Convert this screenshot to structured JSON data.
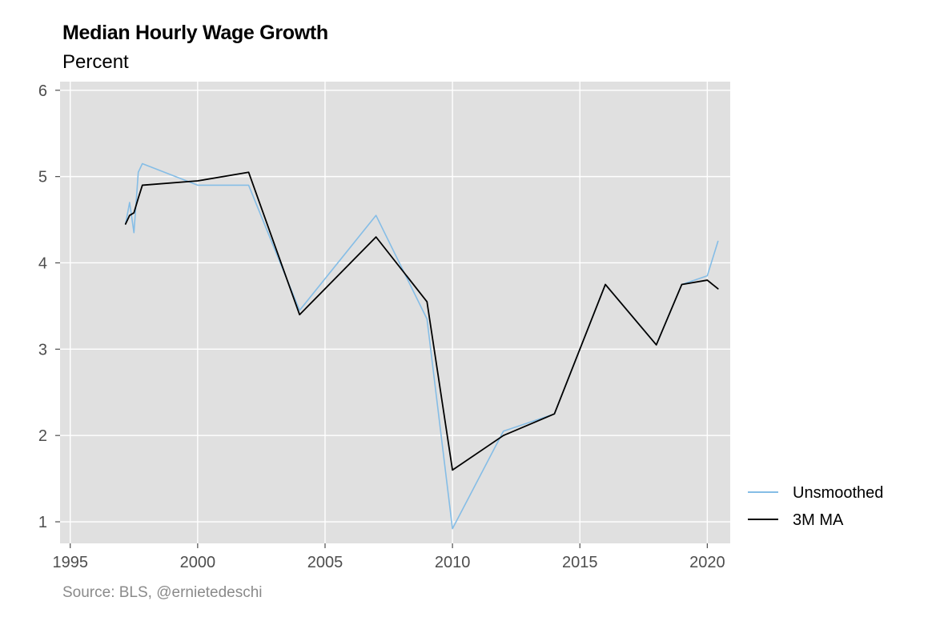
{
  "chart_data": {
    "type": "line",
    "title": "Median Hourly Wage Growth",
    "subtitle": "Percent",
    "caption": "Source: BLS, @ernietedeschi",
    "xlabel": "",
    "ylabel": "",
    "xlim": [
      1994.6,
      2020.9
    ],
    "ylim": [
      0.75,
      6.1
    ],
    "x_ticks": [
      1995,
      2000,
      2005,
      2010,
      2015,
      2020
    ],
    "x_tick_labels": [
      "1995",
      "2000",
      "2005",
      "2010",
      "2015",
      "2020"
    ],
    "y_ticks": [
      1,
      2,
      3,
      4,
      5,
      6
    ],
    "y_tick_labels": [
      "1",
      "2",
      "3",
      "4",
      "5",
      "6"
    ],
    "grid": true,
    "legend_position": "right",
    "colors": {
      "panel": "#e0e0e0",
      "grid": "#ffffff",
      "unsmoothed": "#85bde6",
      "ma": "#000000"
    },
    "series": [
      {
        "name": "Unsmoothed",
        "x": [
          1997.17,
          1997.33,
          1997.5,
          1997.67,
          1997.83,
          2000.0,
          2002.0,
          2004.0,
          2007.0,
          2009.0,
          2010.0,
          2012.0,
          2014.0,
          2016.0,
          2018.0,
          2019.0,
          2020.0,
          2020.42
        ],
        "values": [
          4.45,
          4.7,
          4.35,
          5.05,
          5.15,
          4.9,
          4.9,
          3.45,
          4.55,
          3.35,
          0.92,
          2.05,
          2.25,
          3.75,
          3.05,
          3.75,
          3.85,
          4.25
        ]
      },
      {
        "name": "3M MA",
        "x": [
          1997.17,
          1997.33,
          1997.5,
          1997.67,
          1997.83,
          2000.0,
          2002.0,
          2004.0,
          2007.0,
          2009.0,
          2010.0,
          2012.0,
          2014.0,
          2016.0,
          2018.0,
          2019.0,
          2020.0,
          2020.42
        ],
        "values": [
          4.45,
          4.55,
          4.58,
          4.75,
          4.9,
          4.95,
          5.05,
          3.4,
          4.3,
          3.55,
          1.6,
          2.0,
          2.25,
          3.75,
          3.05,
          3.75,
          3.8,
          3.7
        ]
      }
    ]
  }
}
